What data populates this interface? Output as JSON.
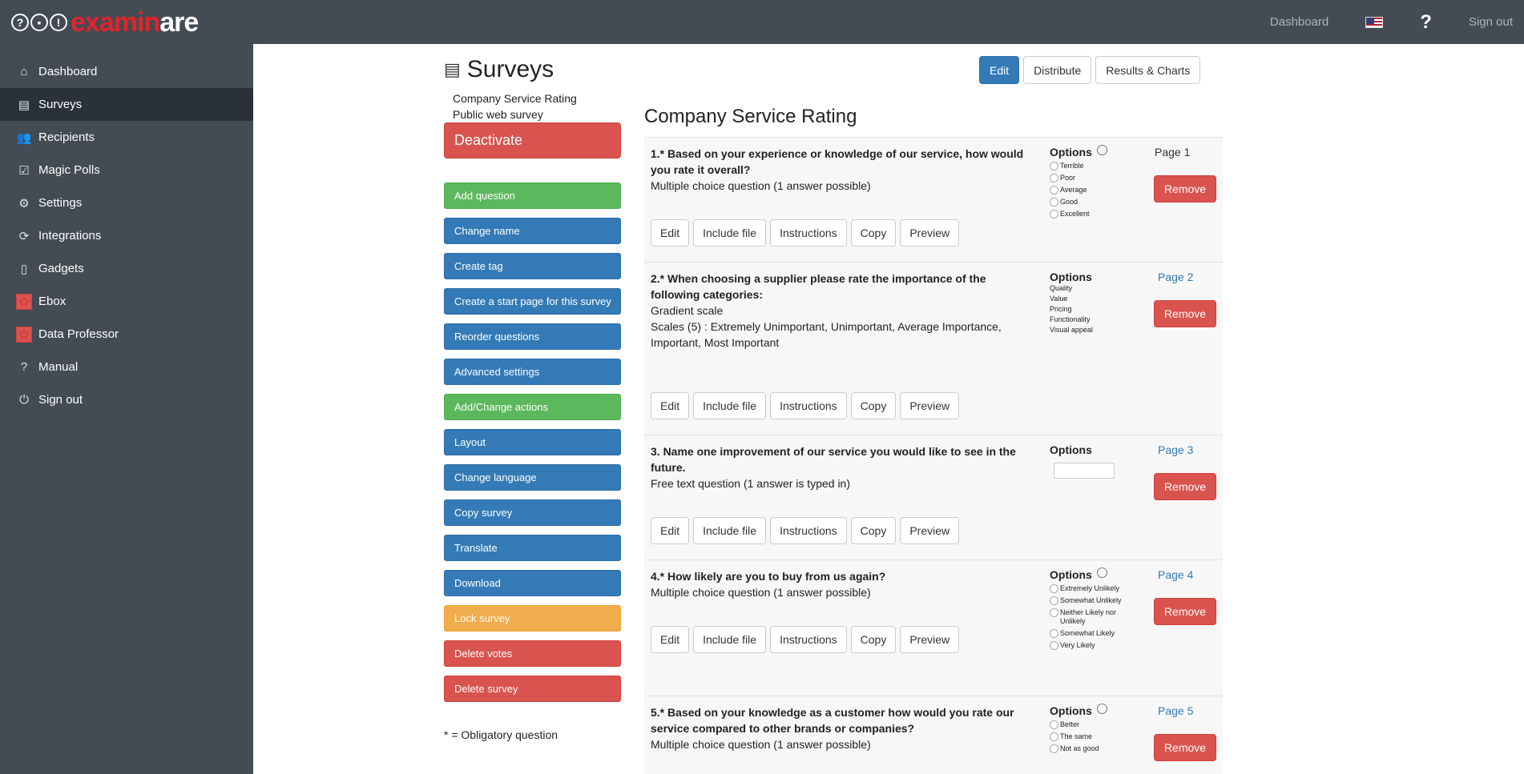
{
  "brand": {
    "logo_red": "examin",
    "logo_white": "are",
    "icons": [
      "?",
      "▪",
      "!"
    ]
  },
  "topnav": {
    "dashboard": "Dashboard",
    "help": "?",
    "signout": "Sign out"
  },
  "sidebar": {
    "items": [
      {
        "label": "Dashboard",
        "icon": "⌂"
      },
      {
        "label": "Surveys",
        "icon": "▤"
      },
      {
        "label": "Recipients",
        "icon": "👥"
      },
      {
        "label": "Magic Polls",
        "icon": "☑"
      },
      {
        "label": "Settings",
        "icon": "⚙"
      },
      {
        "label": "Integrations",
        "icon": "⟳"
      },
      {
        "label": "Gadgets",
        "icon": "▯"
      },
      {
        "label": "Ebox",
        "icon": "✿"
      },
      {
        "label": "Data Professor",
        "icon": "✿"
      },
      {
        "label": "Manual",
        "icon": "?"
      },
      {
        "label": "Sign out",
        "icon": "⏻"
      }
    ]
  },
  "page": {
    "title": "Surveys",
    "survey_name": "Company Service Rating",
    "survey_type": "Public web survey"
  },
  "deactivate": "Deactivate",
  "actions": [
    "Add question",
    "Change name",
    "Create tag",
    "Create a start page for this survey",
    "Reorder questions",
    "Advanced settings",
    "Add/Change actions",
    "Layout",
    "Change language",
    "Copy survey",
    "Translate",
    "Download",
    "Lock survey",
    "Delete votes",
    "Delete survey"
  ],
  "footnote": "* = Obligatory question",
  "tabs": [
    "Edit",
    "Distribute",
    "Results & Charts"
  ],
  "content_title": "Company Service Rating",
  "question_buttons": [
    "Edit",
    "Include file",
    "Instructions",
    "Copy",
    "Preview"
  ],
  "options_label": "Options",
  "remove_label": "Remove",
  "questions": [
    {
      "title": "1.* Based on your experience or knowledge of our service, how would you rate it overall?",
      "type": "Multiple choice question (1 answer possible)",
      "options": [
        "Terrible",
        "Poor",
        "Average",
        "Good",
        "Excellent"
      ],
      "page": "Page 1"
    },
    {
      "title": "2.* When choosing a supplier please rate the importance of the following categories:",
      "type": "Gradient scale",
      "scales": "Scales (5) : Extremely Unimportant, Unimportant, Average Importance, Important, Most Important",
      "categories": [
        "Quality",
        "Value",
        "Pricing",
        "Functionality",
        "Visual appeal"
      ],
      "page": "Page 2"
    },
    {
      "title": "3. Name one improvement of our service you would like to see in the future.",
      "type": "Free text question (1 answer is typed in)",
      "page": "Page 3"
    },
    {
      "title": "4.* How likely are you to buy from us again?",
      "type": "Multiple choice question (1 answer possible)",
      "options": [
        "Extremely Unlikely",
        "Somewhat Unlikely",
        "Neither Likely nor Unlikely",
        "Somewhat Likely",
        "Very Likely"
      ],
      "page": "Page 4"
    },
    {
      "title": "5.* Based on your knowledge as a customer how would you rate our service compared to other brands or companies?",
      "type": "Multiple choice question (1 answer possible)",
      "options": [
        "Better",
        "The same",
        "Not as good"
      ],
      "page": "Page 5"
    }
  ],
  "colors": {
    "topbar": "#434b54",
    "sidebar_active": "#2a313a",
    "primary": "#337ab7",
    "success": "#5cb85c",
    "warning": "#f0ad4e",
    "danger": "#d9534f",
    "brand_red": "#e2232a"
  }
}
